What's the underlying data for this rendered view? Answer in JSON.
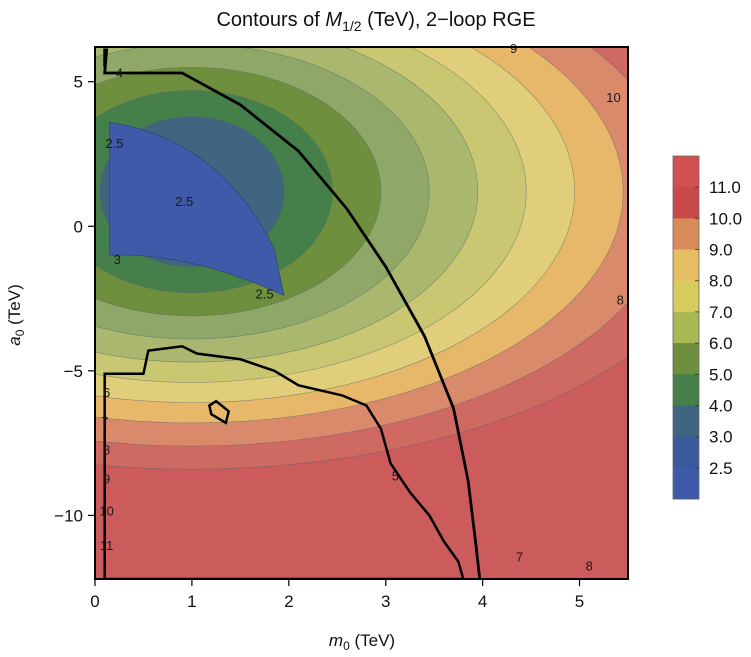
{
  "chart_data": {
    "type": "heatmap",
    "subtype": "filled-contour",
    "title": {
      "prefix": "Contours of ",
      "symbol": "M",
      "subscript": "1/2",
      "suffix": " (TeV),   2−loop RGE"
    },
    "xlabel": {
      "symbol": "m",
      "subscript": "0",
      "unit": " (TeV)"
    },
    "ylabel": {
      "symbol": "a",
      "subscript": "0",
      "unit": " (TeV)"
    },
    "xlim": [
      0,
      5.5
    ],
    "ylim": [
      -12.2,
      6.2
    ],
    "x_ticks": [
      0,
      1,
      2,
      3,
      4,
      5
    ],
    "y_ticks": [
      5,
      0,
      -5,
      -10
    ],
    "x_tick_labels": [
      "0",
      "1",
      "2",
      "3",
      "4",
      "5"
    ],
    "y_tick_labels": [
      "5",
      "0",
      "−5",
      "−10"
    ],
    "colorbar": {
      "labels": [
        "11.0",
        "10.0",
        "9.0",
        "8.0",
        "7.0",
        "6.0",
        "5.0",
        "4.0",
        "3.0",
        "2.5"
      ],
      "colors": [
        "#d25050",
        "#c94848",
        "#d98a5a",
        "#e6bd63",
        "#d6cc5e",
        "#a9b854",
        "#6d8f3e",
        "#45804a",
        "#3f6580",
        "#3a5a9e",
        "#3f5aa8"
      ]
    },
    "band_colors": [
      "#3f5aa8",
      "#3f6580",
      "#45804a",
      "#6d8f3e",
      "#8fa868",
      "#a9b86e",
      "#c9c772",
      "#e0ce7a",
      "#e8b86a",
      "#d98a6a",
      "#cf6a62",
      "#cc5c5c"
    ],
    "contour_levels": [
      2.5,
      3,
      4,
      5,
      6,
      7,
      8,
      9,
      10,
      11
    ],
    "contour_labels": [
      {
        "text": "4",
        "x": 0.25,
        "y": 5.15
      },
      {
        "text": "2.5",
        "x": 0.2,
        "y": 2.7
      },
      {
        "text": "2.5",
        "x": 0.92,
        "y": 0.7
      },
      {
        "text": "3",
        "x": 0.23,
        "y": -1.3
      },
      {
        "text": "2.5",
        "x": 1.75,
        "y": -2.5
      },
      {
        "text": "6",
        "x": 0.12,
        "y": -5.9
      },
      {
        "text": "7",
        "x": 0.1,
        "y": -6.9
      },
      {
        "text": "8",
        "x": 0.12,
        "y": -7.9
      },
      {
        "text": "9",
        "x": 0.12,
        "y": -8.9
      },
      {
        "text": "10",
        "x": 0.12,
        "y": -10.0
      },
      {
        "text": "11",
        "x": 0.12,
        "y": -11.2
      },
      {
        "text": "5",
        "x": 3.1,
        "y": -8.8
      },
      {
        "text": "7",
        "x": 4.38,
        "y": -11.6
      },
      {
        "text": "8",
        "x": 5.1,
        "y": -11.9
      },
      {
        "text": "8",
        "x": 5.42,
        "y": -2.7
      },
      {
        "text": "9",
        "x": 4.32,
        "y": 6.0
      },
      {
        "text": "10",
        "x": 5.35,
        "y": 4.3
      }
    ],
    "bold_boundary": [
      [
        0.1,
        5.5
      ],
      [
        0.1,
        6.1
      ],
      [
        0.12,
        6.1
      ],
      [
        0.1,
        5.3
      ],
      [
        0.9,
        5.3
      ],
      [
        1.5,
        4.2
      ],
      [
        2.1,
        2.6
      ],
      [
        2.6,
        0.6
      ],
      [
        3.0,
        -1.4
      ],
      [
        3.4,
        -3.8
      ],
      [
        3.7,
        -6.3
      ],
      [
        3.85,
        -8.8
      ],
      [
        3.93,
        -11.0
      ],
      [
        3.97,
        -12.2
      ]
    ],
    "excluded_region": [
      [
        0.1,
        -5.1
      ],
      [
        0.5,
        -5.1
      ],
      [
        0.55,
        -4.3
      ],
      [
        0.9,
        -4.15
      ],
      [
        1.05,
        -4.4
      ],
      [
        1.5,
        -4.6
      ],
      [
        1.85,
        -5.0
      ],
      [
        2.1,
        -5.5
      ],
      [
        2.55,
        -5.85
      ],
      [
        2.8,
        -6.2
      ],
      [
        2.95,
        -7.0
      ],
      [
        3.05,
        -8.2
      ],
      [
        3.25,
        -9.2
      ],
      [
        3.45,
        -10.0
      ],
      [
        3.6,
        -10.9
      ],
      [
        3.75,
        -11.6
      ],
      [
        3.8,
        -12.2
      ]
    ],
    "island": [
      [
        1.18,
        -6.2
      ],
      [
        1.25,
        -6.05
      ],
      [
        1.38,
        -6.4
      ],
      [
        1.35,
        -6.8
      ],
      [
        1.2,
        -6.5
      ]
    ]
  }
}
